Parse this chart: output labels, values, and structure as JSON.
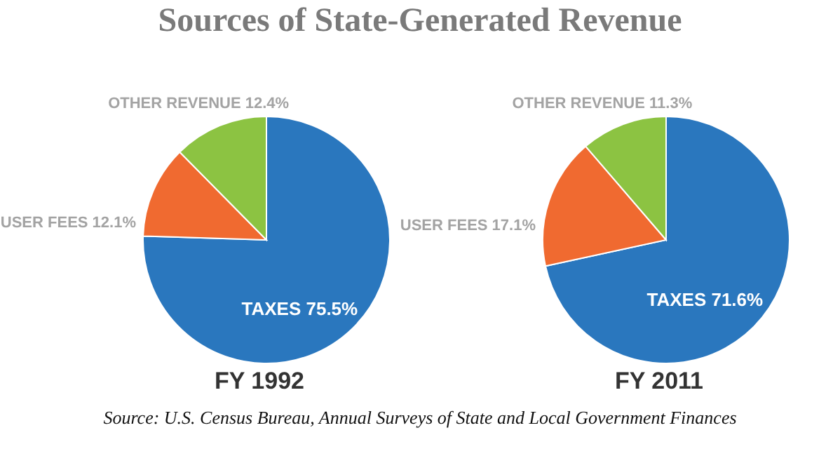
{
  "chart_data": [
    {
      "type": "pie",
      "title": "Sources of State-Generated Revenue",
      "xlabel": "FY 1992",
      "categories": [
        "TAXES",
        "USER FEES",
        "OTHER REVENUE"
      ],
      "values": [
        75.5,
        12.1,
        12.4
      ],
      "value_labels": [
        "75.5%",
        "12.1%",
        "12.4%"
      ],
      "colors": [
        "#2a77be",
        "#f06a30",
        "#8cc342"
      ]
    },
    {
      "type": "pie",
      "xlabel": "FY 2011",
      "categories": [
        "TAXES",
        "USER FEES",
        "OTHER REVENUE"
      ],
      "values": [
        71.6,
        17.1,
        11.3
      ],
      "value_labels": [
        "71.6%",
        "17.1%",
        "11.3%"
      ],
      "colors": [
        "#2a77be",
        "#f06a30",
        "#8cc342"
      ],
      "annotations": [
        "Source: U.S. Census Bureau, Annual Surveys of State and Local Government Finances"
      ]
    }
  ]
}
